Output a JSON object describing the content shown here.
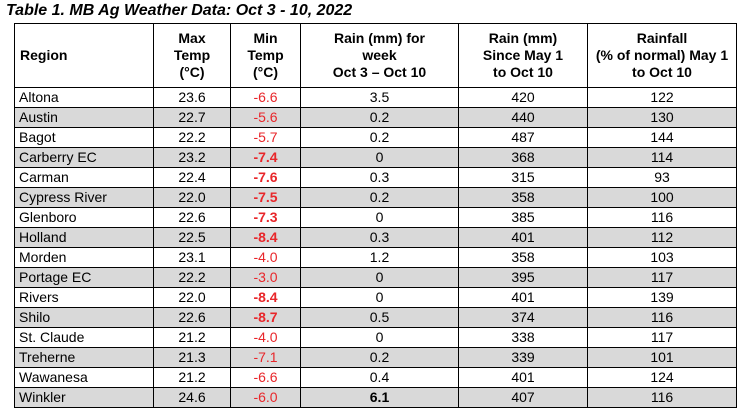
{
  "title": {
    "label": "Table 1. MB Ag Weather Data:",
    "dates": "Oct 3 - 10, 2022"
  },
  "headers": {
    "region": "Region",
    "max_temp": [
      "Max",
      "Temp",
      "(°C)"
    ],
    "min_temp": [
      "Min",
      "Temp",
      "(°C)"
    ],
    "rain_week": [
      "Rain (mm) for",
      "week",
      "Oct 3 – Oct 10"
    ],
    "rain_since": [
      "Rain (mm)",
      "Since May 1",
      "to Oct 10"
    ],
    "rainfall_pct": [
      "Rainfall",
      "(% of normal) May 1",
      "to Oct 10"
    ]
  },
  "rows": [
    {
      "region": "Altona",
      "max": "23.6",
      "min": "-6.6",
      "min_bold": false,
      "rain_week": "3.5",
      "rain_week_bold": false,
      "rain_since": "420",
      "pct": "122"
    },
    {
      "region": "Austin",
      "max": "22.7",
      "min": "-5.6",
      "min_bold": false,
      "rain_week": "0.2",
      "rain_week_bold": false,
      "rain_since": "440",
      "pct": "130"
    },
    {
      "region": "Bagot",
      "max": "22.2",
      "min": "-5.7",
      "min_bold": false,
      "rain_week": "0.2",
      "rain_week_bold": false,
      "rain_since": "487",
      "pct": "144"
    },
    {
      "region": "Carberry EC",
      "max": "23.2",
      "min": "-7.4",
      "min_bold": true,
      "rain_week": "0",
      "rain_week_bold": false,
      "rain_since": "368",
      "pct": "114"
    },
    {
      "region": "Carman",
      "max": "22.4",
      "min": "-7.6",
      "min_bold": true,
      "rain_week": "0.3",
      "rain_week_bold": false,
      "rain_since": "315",
      "pct": "93"
    },
    {
      "region": "Cypress River",
      "max": "22.0",
      "min": "-7.5",
      "min_bold": true,
      "rain_week": "0.2",
      "rain_week_bold": false,
      "rain_since": "358",
      "pct": "100"
    },
    {
      "region": "Glenboro",
      "max": "22.6",
      "min": "-7.3",
      "min_bold": true,
      "rain_week": "0",
      "rain_week_bold": false,
      "rain_since": "385",
      "pct": "116"
    },
    {
      "region": "Holland",
      "max": "22.5",
      "min": "-8.4",
      "min_bold": true,
      "rain_week": "0.3",
      "rain_week_bold": false,
      "rain_since": "401",
      "pct": "112"
    },
    {
      "region": "Morden",
      "max": "23.1",
      "min": "-4.0",
      "min_bold": false,
      "rain_week": "1.2",
      "rain_week_bold": false,
      "rain_since": "358",
      "pct": "103"
    },
    {
      "region": "Portage EC",
      "max": "22.2",
      "min": "-3.0",
      "min_bold": false,
      "rain_week": "0",
      "rain_week_bold": false,
      "rain_since": "395",
      "pct": "117"
    },
    {
      "region": "Rivers",
      "max": "22.0",
      "min": "-8.4",
      "min_bold": true,
      "rain_week": "0",
      "rain_week_bold": false,
      "rain_since": "401",
      "pct": "139"
    },
    {
      "region": "Shilo",
      "max": "22.6",
      "min": "-8.7",
      "min_bold": true,
      "rain_week": "0.5",
      "rain_week_bold": false,
      "rain_since": "374",
      "pct": "116"
    },
    {
      "region": "St. Claude",
      "max": "21.2",
      "min": "-4.0",
      "min_bold": false,
      "rain_week": "0",
      "rain_week_bold": false,
      "rain_since": "338",
      "pct": "117"
    },
    {
      "region": "Treherne",
      "max": "21.3",
      "min": "-7.1",
      "min_bold": false,
      "rain_week": "0.2",
      "rain_week_bold": false,
      "rain_since": "339",
      "pct": "101"
    },
    {
      "region": "Wawanesa",
      "max": "21.2",
      "min": "-6.6",
      "min_bold": false,
      "rain_week": "0.4",
      "rain_week_bold": false,
      "rain_since": "401",
      "pct": "124"
    },
    {
      "region": "Winkler",
      "max": "24.6",
      "min": "-6.0",
      "min_bold": false,
      "rain_week": "6.1",
      "rain_week_bold": true,
      "rain_since": "407",
      "pct": "116"
    }
  ],
  "colors": {
    "negative_temp": "#e8262a",
    "row_shade": "#d9d9d9"
  }
}
